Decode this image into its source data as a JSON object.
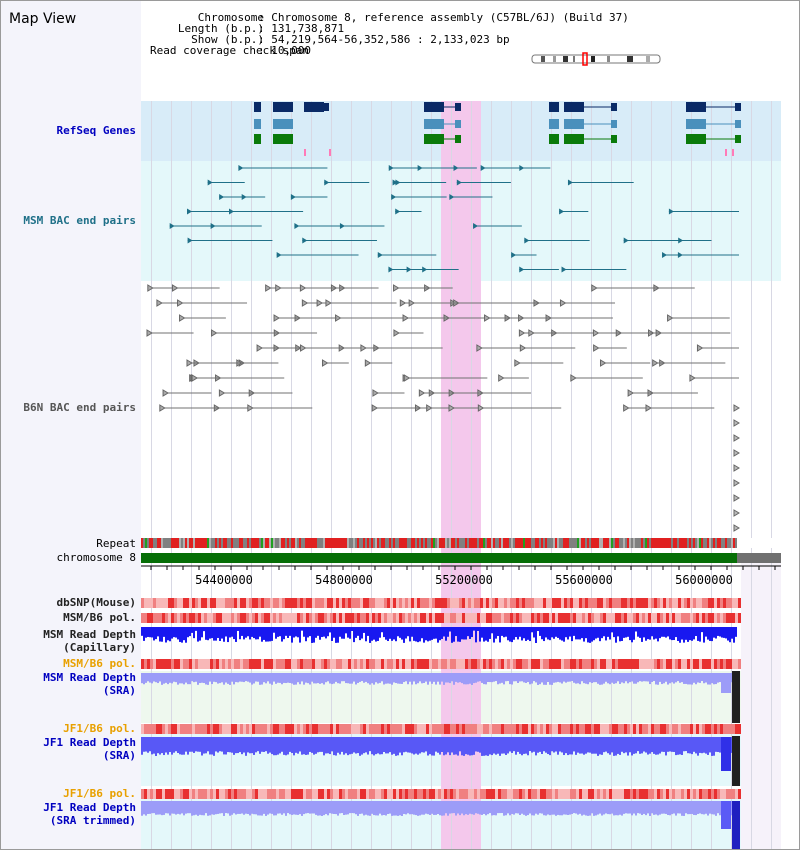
{
  "title": "Map View",
  "info": {
    "labels": [
      "Chromosome",
      "Length (b.p.)",
      "Show (b.p.)",
      "Read coverage check span"
    ],
    "values": [
      "Chromosome 8, reference assembly (C57BL/6J) (Build 37)",
      "131,738,871",
      "54,219,564-56,352,586 : 2,133,023 bp",
      "10,000"
    ]
  },
  "tracks": {
    "refseq_genes": "RefSeq Genes",
    "msm_bac": "MSM BAC end pairs",
    "b6n_bac": "B6N BAC end pairs",
    "repeat": "Repeat",
    "chromosome": "chromosome 8",
    "dbsnp": "dbSNP(Mouse)",
    "msm_b6_pol": "MSM/B6 pol.",
    "msm_depth_cap_1": "MSM Read Depth",
    "msm_depth_cap_2": "(Capillary)",
    "msm_b6_pol_2": "MSM/B6 pol.",
    "msm_depth_sra_1": "MSM Read Depth",
    "msm_depth_sra_2": "(SRA)",
    "jf1_b6_pol": "JF1/B6 pol.",
    "jf1_depth_sra_1": "JF1 Read Depth",
    "jf1_depth_sra_2": "(SRA)",
    "jf1_b6_pol_2": "JF1/B6 pol.",
    "jf1_depth_trim_1": "JF1 Read Depth",
    "jf1_depth_trim_2": "(SRA trimmed)"
  },
  "axis": {
    "ticks": [
      "54400000",
      "54800000",
      "55200000",
      "55600000",
      "56000000"
    ]
  },
  "colors": {
    "refseq_bg": "#d8ecf8",
    "msm_bg": "#e4f8fa",
    "highlight": "#f4c8ec",
    "gene_navy": "#0a2a66",
    "gene_steel": "#4a90bc",
    "gene_green": "#0a7a0a",
    "bac_teal": "#1f7088",
    "bac_gray": "#707070",
    "chrom": "#066e06",
    "depth_blue": "#1818f0",
    "depth_light": "#9c9cf8",
    "pol_red": "#f07070"
  }
}
